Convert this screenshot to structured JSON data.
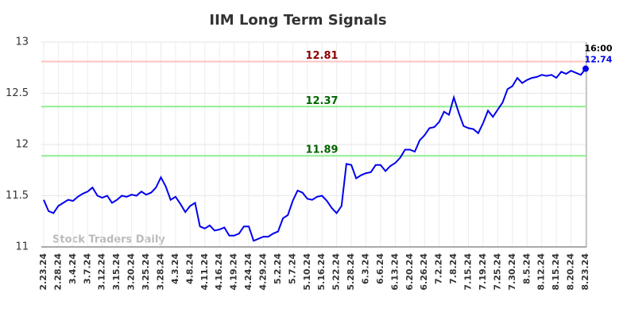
{
  "chart_data": {
    "type": "line",
    "title": "IIM Long Term Signals",
    "watermark": "Stock Traders Daily",
    "end_time": "16:00",
    "categories": [
      "2.23.24",
      null,
      null,
      "2.28.24",
      null,
      null,
      "3.4.24",
      null,
      null,
      "3.7.24",
      null,
      null,
      "3.12.24",
      null,
      null,
      "3.15.24",
      null,
      null,
      "3.20.24",
      null,
      null,
      "3.25.24",
      null,
      null,
      "3.28.24",
      null,
      null,
      "4.3.24",
      null,
      null,
      "4.8.24",
      null,
      null,
      "4.11.24",
      null,
      null,
      "4.16.24",
      null,
      null,
      "4.19.24",
      null,
      null,
      "4.24.24",
      null,
      null,
      "4.29.24",
      null,
      null,
      "5.2.24",
      null,
      null,
      "5.7.24",
      null,
      null,
      "5.10.24",
      null,
      null,
      "5.16.24",
      null,
      null,
      "5.22.24",
      null,
      null,
      "5.28.24",
      null,
      null,
      "6.3.24",
      null,
      null,
      "6.6.24",
      null,
      null,
      "6.13.24",
      null,
      null,
      "6.20.24",
      null,
      null,
      "6.26.24",
      null,
      null,
      "7.2.24",
      null,
      null,
      "7.8.24",
      null,
      null,
      "7.15.24",
      null,
      null,
      "7.19.24",
      null,
      null,
      "7.25.24",
      null,
      null,
      "7.30.24",
      null,
      null,
      "8.5.24",
      null,
      null,
      "8.12.24",
      null,
      null,
      "8.15.24",
      null,
      null,
      "8.20.24",
      null,
      null,
      "8.23.24"
    ],
    "series": [
      {
        "name": "IIM",
        "color": "#0000ee",
        "values": [
          11.46,
          11.35,
          11.33,
          11.4,
          11.43,
          11.46,
          11.45,
          11.49,
          11.52,
          11.54,
          11.58,
          11.5,
          11.48,
          11.5,
          11.43,
          11.46,
          11.5,
          11.49,
          11.51,
          11.5,
          11.54,
          11.51,
          11.53,
          11.58,
          11.68,
          11.59,
          11.46,
          11.49,
          11.42,
          11.34,
          11.4,
          11.43,
          11.2,
          11.18,
          11.21,
          11.16,
          11.17,
          11.19,
          11.11,
          11.11,
          11.13,
          11.2,
          11.2,
          11.06,
          11.08,
          11.1,
          11.1,
          11.13,
          11.15,
          11.28,
          11.31,
          11.45,
          11.55,
          11.53,
          11.47,
          11.46,
          11.49,
          11.5,
          11.45,
          11.38,
          11.33,
          11.4,
          11.81,
          11.8,
          11.67,
          11.7,
          11.72,
          11.73,
          11.8,
          11.8,
          11.74,
          11.79,
          11.82,
          11.87,
          11.95,
          11.95,
          11.93,
          12.04,
          12.09,
          12.16,
          12.17,
          12.22,
          12.32,
          12.29,
          12.46,
          12.31,
          12.18,
          12.16,
          12.15,
          12.11,
          12.21,
          12.33,
          12.27,
          12.34,
          12.41,
          12.54,
          12.57,
          12.65,
          12.6,
          12.63,
          12.65,
          12.66,
          12.68,
          12.67,
          12.68,
          12.65,
          12.71,
          12.69,
          12.72,
          12.7,
          12.68,
          12.74
        ]
      }
    ],
    "hlines": [
      {
        "value": 12.81,
        "color": "#ffc0c0",
        "label_color": "#8b0000"
      },
      {
        "value": 12.37,
        "color": "#90ee90",
        "label_color": "#006400"
      },
      {
        "value": 11.89,
        "color": "#90ee90",
        "label_color": "#006400"
      }
    ],
    "ylim": [
      11,
      13
    ],
    "yticks": [
      11,
      11.5,
      12,
      12.5,
      13
    ],
    "grid": true
  }
}
